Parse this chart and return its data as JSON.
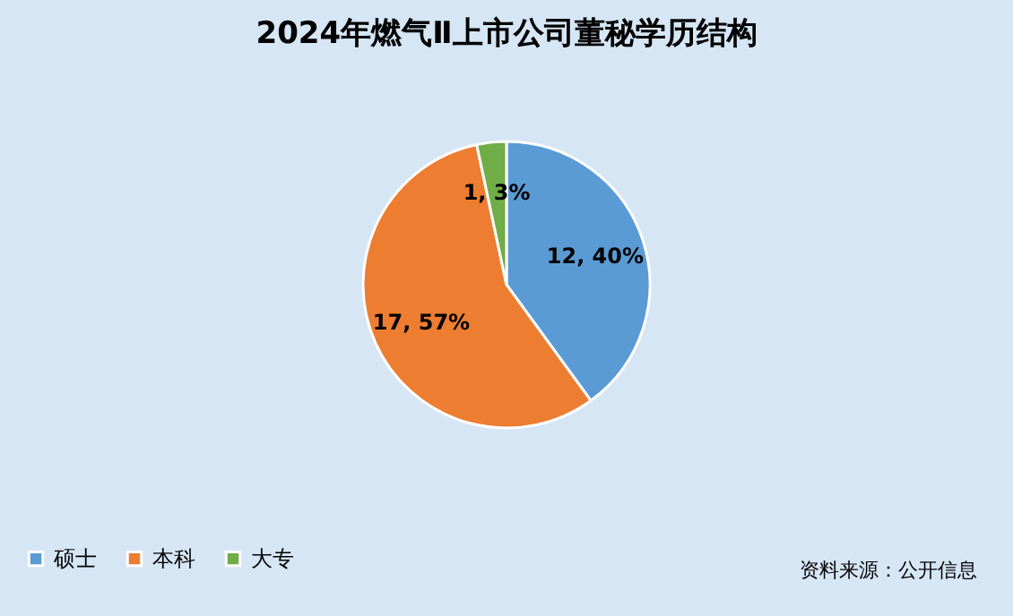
{
  "chart_data": {
    "type": "pie",
    "title": "2024年燃气Ⅱ上市公司董秘学历结构",
    "categories": [
      "硕士",
      "本科",
      "大专"
    ],
    "values": [
      12,
      17,
      1
    ],
    "colors": [
      "#5b9bd5",
      "#ed7d31",
      "#70ad47"
    ],
    "value_labels": [
      "12, 40%",
      "17, 57%",
      "1, 3%"
    ],
    "legend": "bottom",
    "annotations": [
      "资料来源：公开信息"
    ]
  }
}
